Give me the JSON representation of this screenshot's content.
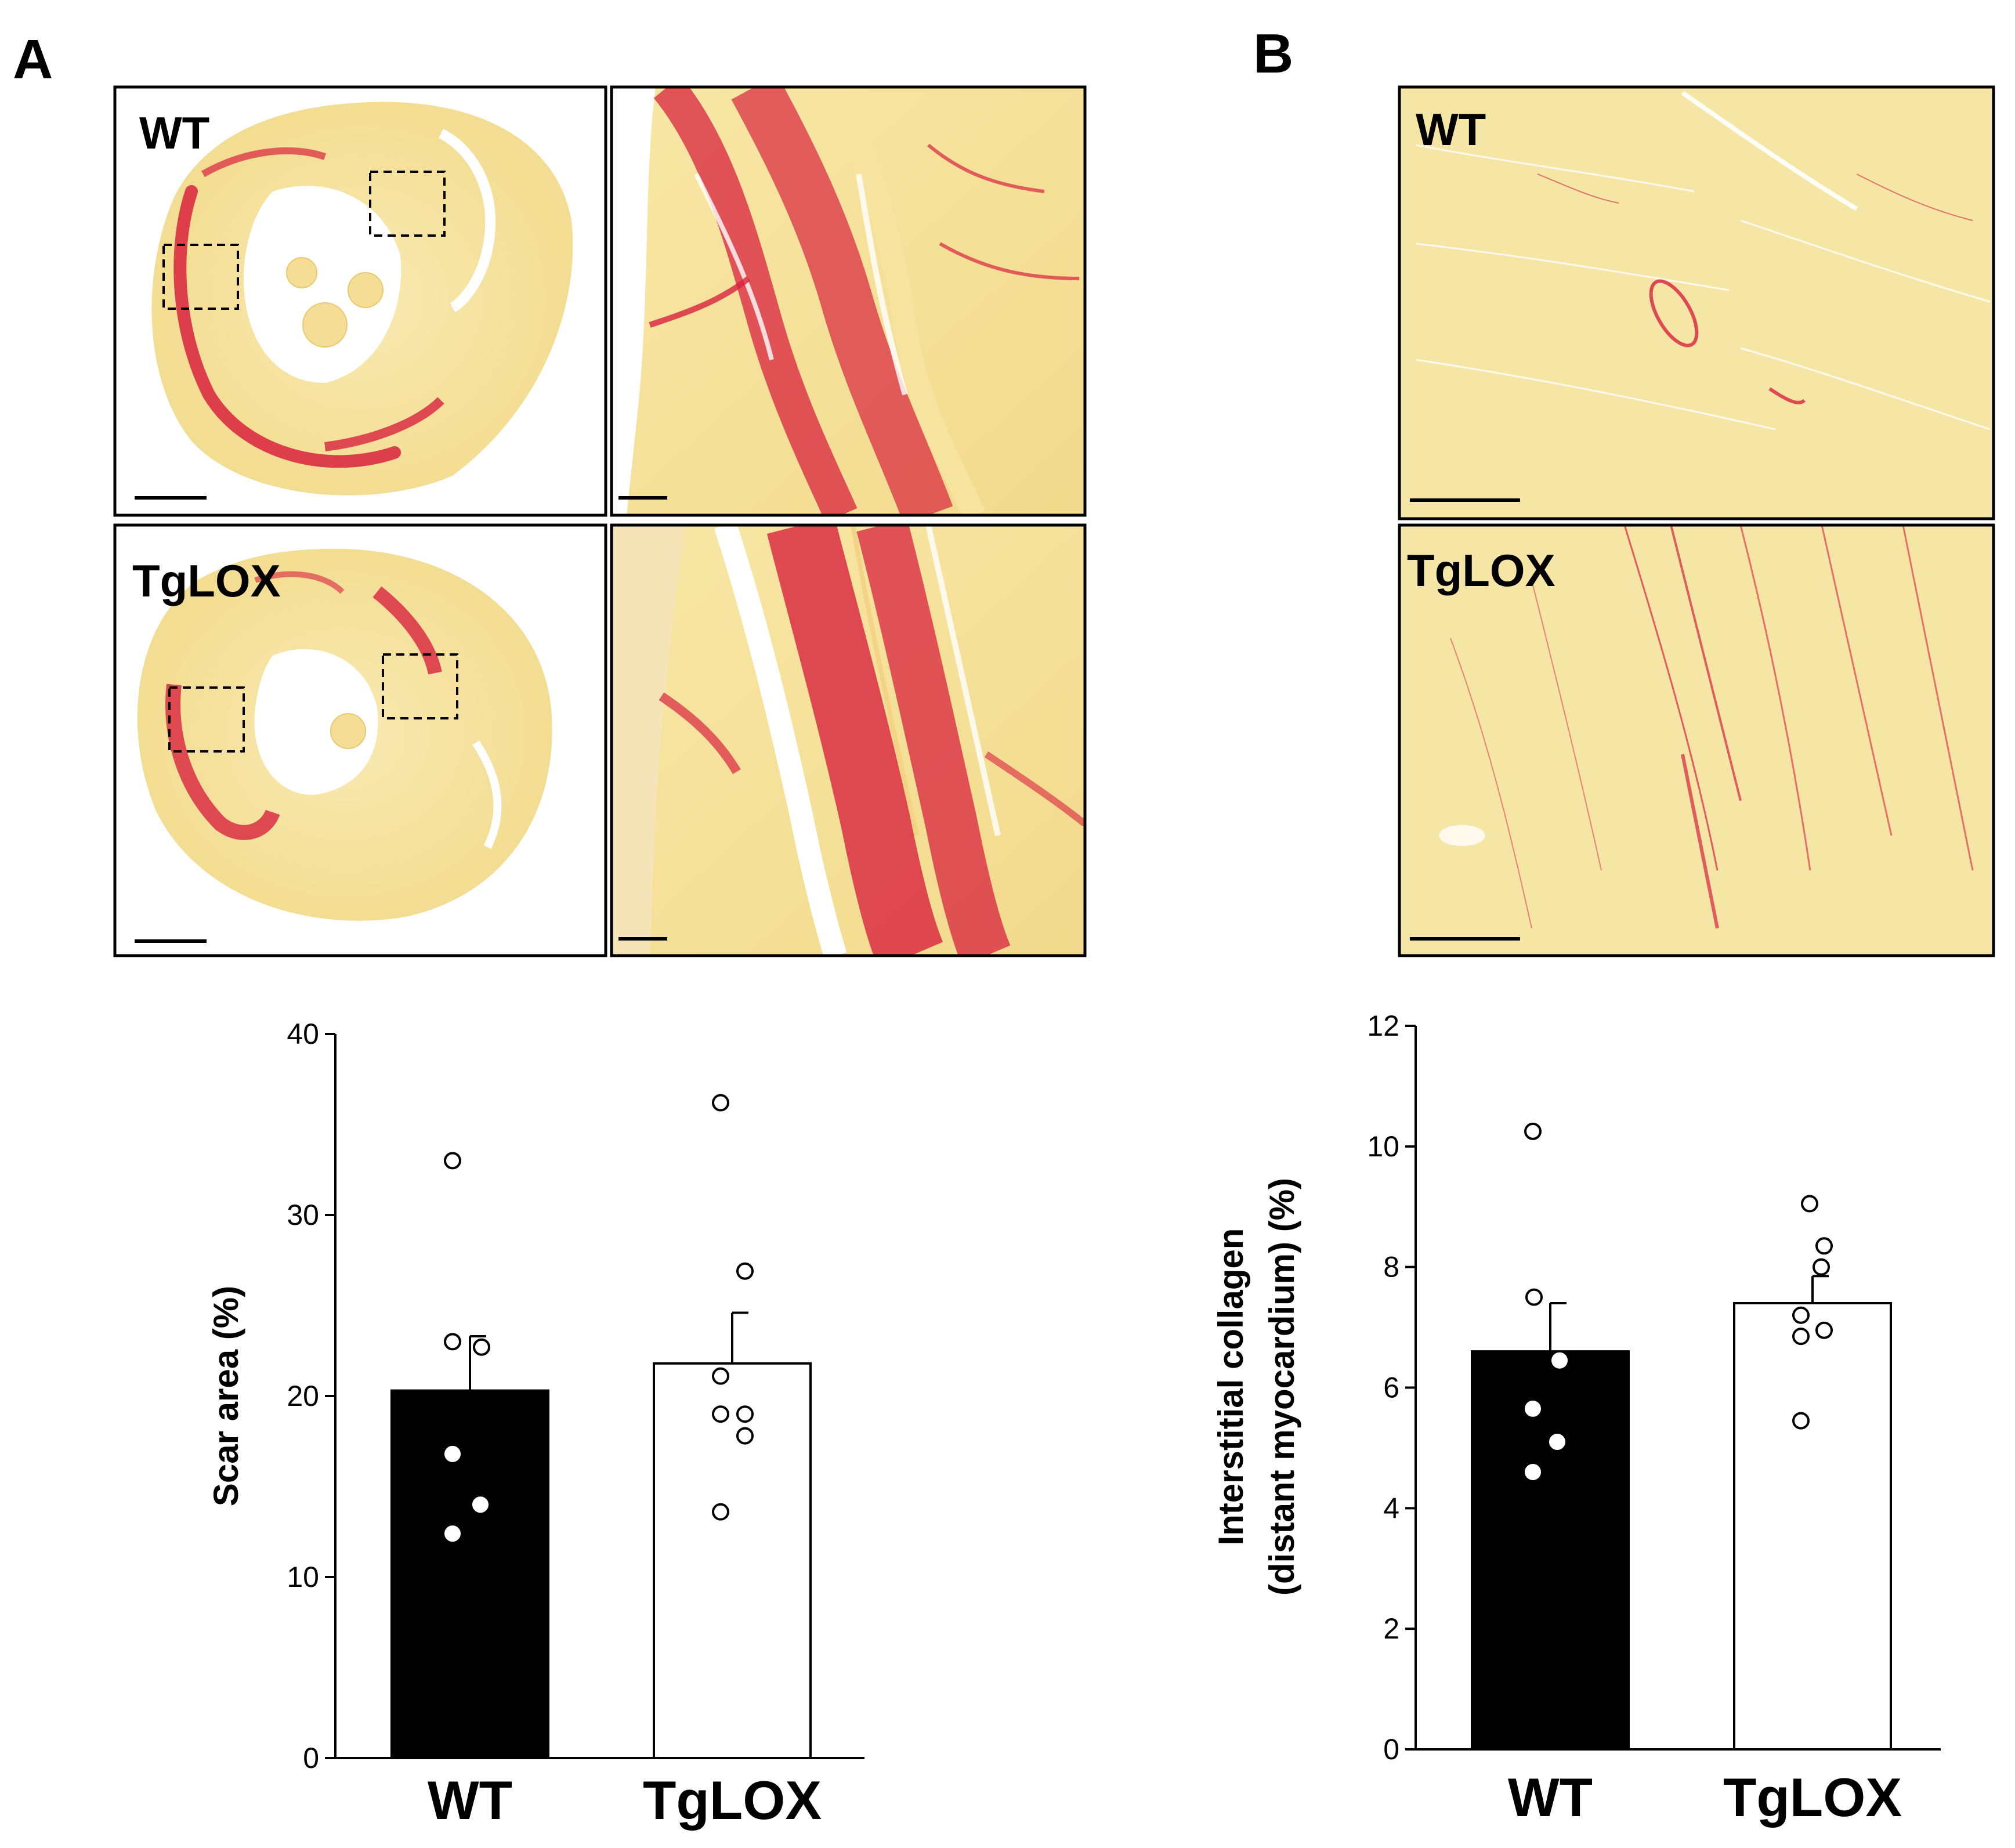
{
  "figure": {
    "panel_a_letter": "A",
    "panel_b_letter": "B",
    "micrographs": {
      "a_wt_label": "WT",
      "a_tglox_label": "TgLOX",
      "b_wt_label": "WT",
      "b_tglox_label": "TgLOX",
      "colors": {
        "background": "#f7e7a8",
        "stain": "#d8223d"
      }
    }
  },
  "chart_data": [
    {
      "type": "bar",
      "panel": "A",
      "title": "",
      "xlabel": "",
      "ylabel": "Scar area (%)",
      "categories": [
        "WT",
        "TgLOX"
      ],
      "values": [
        20.3,
        21.8
      ],
      "errors": [
        3.0,
        2.8
      ],
      "ylim": [
        0,
        40
      ],
      "yticks": [
        "0",
        "10",
        "20",
        "30",
        "40"
      ],
      "bar_colors": [
        "#000000",
        "#ffffff"
      ],
      "points": [
        [
          33.0,
          23.0,
          22.7,
          16.8,
          14.0,
          12.4
        ],
        [
          36.2,
          26.9,
          21.1,
          19.0,
          19.0,
          17.8,
          13.6
        ]
      ]
    },
    {
      "type": "bar",
      "panel": "B",
      "title": "",
      "xlabel": "",
      "ylabel": "Interstitial collagen (distant myocardium) (%)",
      "ylabel_lines": [
        "Interstitial collagen",
        "(distant myocardium) (%)"
      ],
      "categories": [
        "WT",
        "TgLOX"
      ],
      "values": [
        6.6,
        7.4
      ],
      "errors": [
        0.8,
        0.45
      ],
      "ylim": [
        0,
        12
      ],
      "yticks": [
        "0",
        "2",
        "4",
        "6",
        "8",
        "10",
        "12"
      ],
      "bar_colors": [
        "#000000",
        "#ffffff"
      ],
      "points": [
        [
          10.25,
          7.5,
          6.45,
          5.65,
          5.1,
          4.6
        ],
        [
          9.05,
          8.35,
          8.0,
          7.2,
          6.85,
          6.95,
          5.45
        ]
      ]
    }
  ]
}
